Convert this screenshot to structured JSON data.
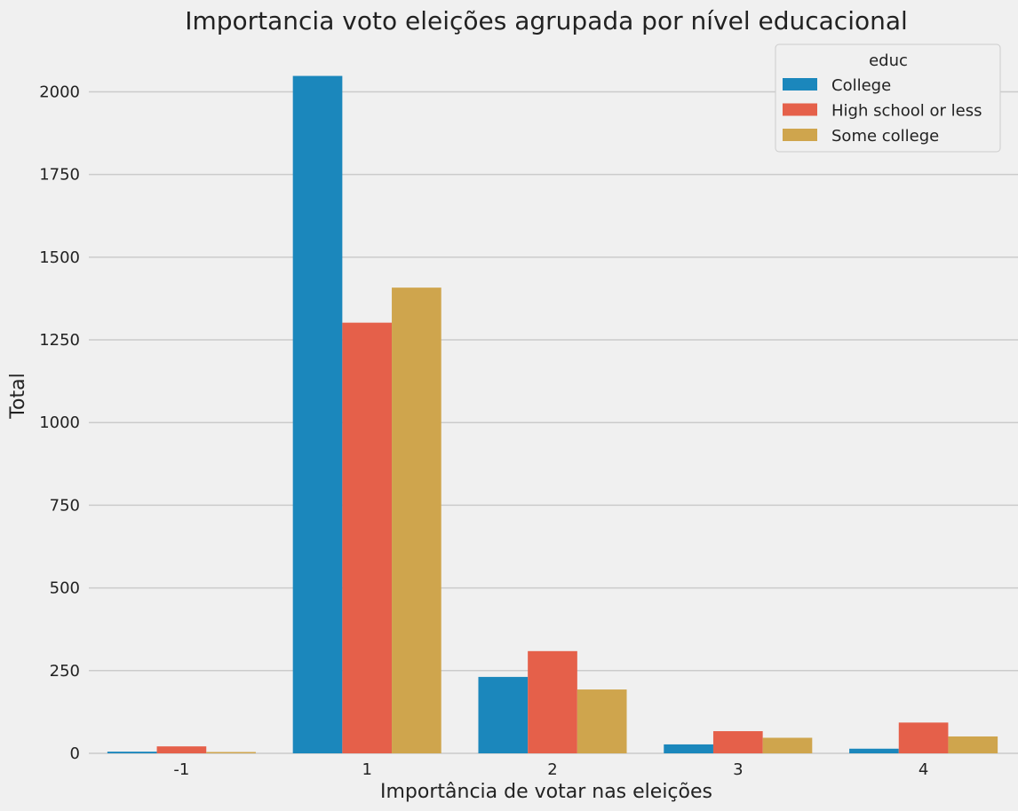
{
  "chart_data": {
    "type": "bar",
    "title": "Importancia voto eleições agrupada por nível educacional",
    "xlabel": "Importância de votar nas eleições",
    "ylabel": "Total",
    "categories": [
      "-1",
      "1",
      "2",
      "3",
      "4"
    ],
    "series": [
      {
        "name": "College",
        "color": "#1b87bc",
        "values": [
          5,
          2048,
          231,
          27,
          14
        ]
      },
      {
        "name": "High school or less",
        "color": "#e5604a",
        "values": [
          21,
          1302,
          309,
          67,
          93
        ]
      },
      {
        "name": "Some college",
        "color": "#cfa54d",
        "values": [
          4,
          1408,
          193,
          47,
          51
        ]
      }
    ],
    "ylim": [
      0,
      2130
    ],
    "yticks": [
      0,
      250,
      500,
      750,
      1000,
      1250,
      1500,
      1750,
      2000
    ],
    "grid": "horizontal",
    "legend": {
      "title": "educ",
      "placement": "top-right"
    }
  }
}
